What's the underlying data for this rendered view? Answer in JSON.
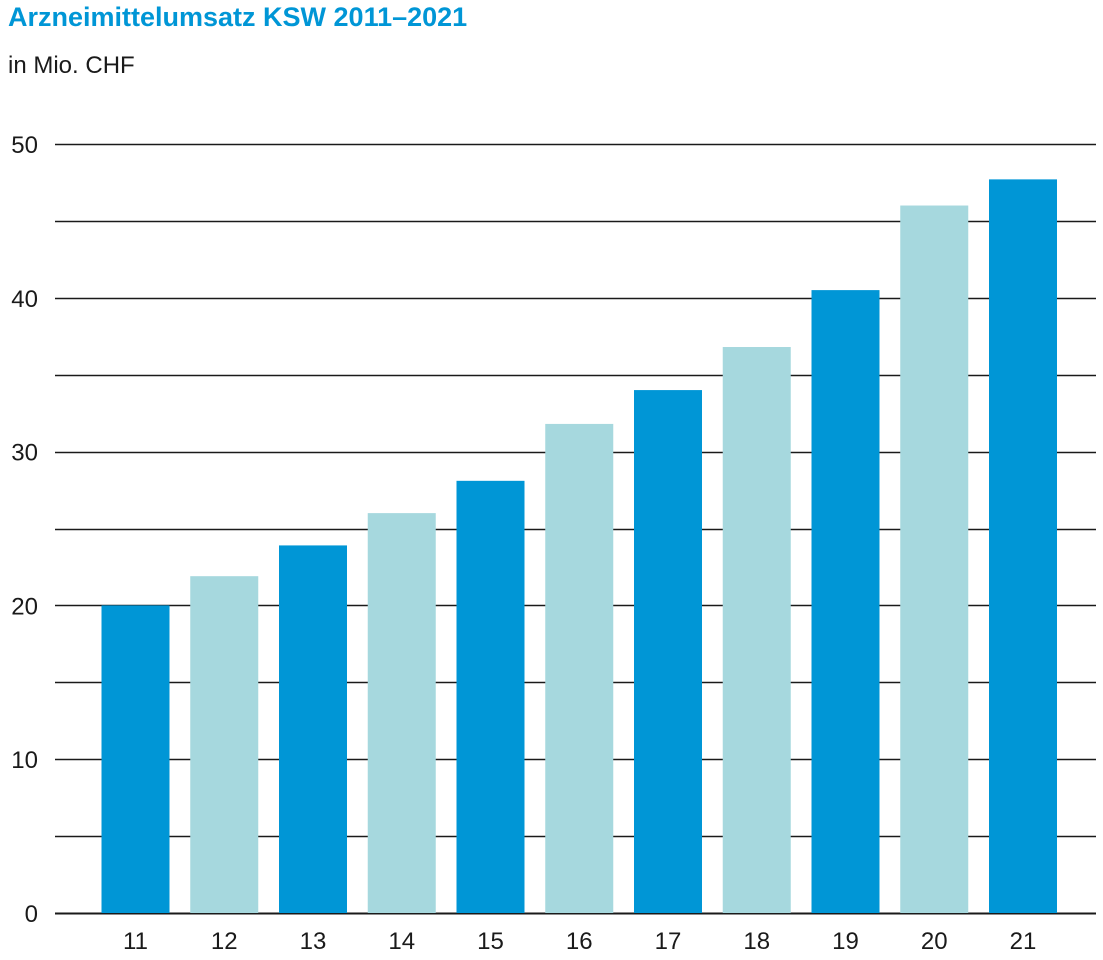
{
  "chart_data": {
    "type": "bar",
    "title": "Arzneimittelumsatz KSW 2011–2021",
    "subtitle": "in Mio. CHF",
    "xlabel": "",
    "ylabel": "",
    "categories": [
      "11",
      "12",
      "13",
      "14",
      "15",
      "16",
      "17",
      "18",
      "19",
      "20",
      "21"
    ],
    "values": [
      20.0,
      21.9,
      23.9,
      26.0,
      28.1,
      31.8,
      34.0,
      36.8,
      40.5,
      46.0,
      47.7
    ],
    "ylim": [
      0,
      50
    ],
    "y_ticks": [
      {
        "value": 0,
        "label": "0"
      },
      {
        "value": 10,
        "label": "10"
      },
      {
        "value": 20,
        "label": "20"
      },
      {
        "value": 30,
        "label": "30"
      },
      {
        "value": 40,
        "label": "40"
      },
      {
        "value": 50,
        "label": "50"
      }
    ],
    "gridlines_at": [
      0,
      5,
      10,
      15,
      20,
      25,
      30,
      35,
      40,
      45,
      50
    ],
    "grid": true,
    "legend": "none",
    "colors": {
      "title": "#0096d6",
      "bar_dark": "#0096d6",
      "bar_light": "#a6d8de",
      "gridline": "#1a1a1a",
      "text": "#1a1a1a"
    },
    "bar_color_pattern": [
      "bar_dark",
      "bar_light"
    ]
  }
}
